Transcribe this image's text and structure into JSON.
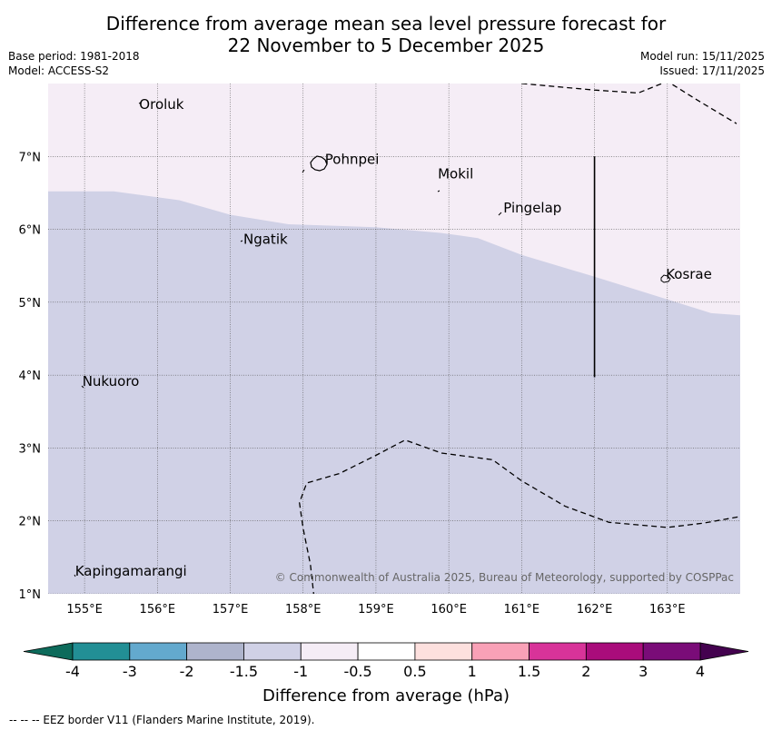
{
  "title": {
    "line1": "Difference from average mean sea level pressure forecast for",
    "line2": "22 November to 5 December 2025"
  },
  "meta": {
    "base_period": "Base period: 1981-2018",
    "model": "Model: ACCESS-S2",
    "model_run": "Model run: 15/11/2025",
    "issued": "Issued: 17/11/2025"
  },
  "map": {
    "lon_range": [
      154.5,
      164
    ],
    "lat_range": [
      1,
      8
    ],
    "lon_ticks": [
      {
        "value": 155,
        "label": "155°E"
      },
      {
        "value": 156,
        "label": "156°E"
      },
      {
        "value": 157,
        "label": "157°E"
      },
      {
        "value": 158,
        "label": "158°E"
      },
      {
        "value": 159,
        "label": "159°E"
      },
      {
        "value": 160,
        "label": "160°E"
      },
      {
        "value": 161,
        "label": "161°E"
      },
      {
        "value": 162,
        "label": "162°E"
      },
      {
        "value": 163,
        "label": "163°E"
      }
    ],
    "lat_ticks": [
      {
        "value": 1,
        "label": "1°N"
      },
      {
        "value": 2,
        "label": "2°N"
      },
      {
        "value": 3,
        "label": "3°N"
      },
      {
        "value": 4,
        "label": "4°N"
      },
      {
        "value": 5,
        "label": "5°N"
      },
      {
        "value": 6,
        "label": "6°N"
      },
      {
        "value": 7,
        "label": "7°N"
      }
    ],
    "places": [
      {
        "name": "Oroluk",
        "lon": 155.75,
        "lat": 7.65
      },
      {
        "name": "Pohnpei",
        "lon": 158.3,
        "lat": 6.9
      },
      {
        "name": "Mokil",
        "lon": 159.85,
        "lat": 6.7
      },
      {
        "name": "Pingelap",
        "lon": 160.75,
        "lat": 6.23
      },
      {
        "name": "Ngatik",
        "lon": 157.18,
        "lat": 5.8
      },
      {
        "name": "Kosrae",
        "lon": 162.98,
        "lat": 5.32
      },
      {
        "name": "Nukuoro",
        "lon": 154.97,
        "lat": 3.85
      },
      {
        "name": "Kapingamarangi",
        "lon": 154.87,
        "lat": 1.25
      }
    ],
    "anomaly_boundary": [
      [
        154.5,
        6.52
      ],
      [
        155.4,
        6.52
      ],
      [
        156.3,
        6.4
      ],
      [
        157.0,
        6.2
      ],
      [
        157.8,
        6.07
      ],
      [
        159.0,
        6.03
      ],
      [
        159.9,
        5.95
      ],
      [
        160.4,
        5.88
      ],
      [
        161.0,
        5.65
      ],
      [
        162.0,
        5.35
      ],
      [
        162.9,
        5.07
      ],
      [
        163.6,
        4.85
      ],
      [
        164.0,
        4.82
      ]
    ],
    "region_colors": {
      "upper": "#f5edf6",
      "lower": "#d0d1e6"
    },
    "eez_lines": [
      [
        [
          161.0,
          8.0
        ],
        [
          162.0,
          7.91
        ],
        [
          162.6,
          7.87
        ],
        [
          163.0,
          8.03
        ],
        [
          163.4,
          7.78
        ],
        [
          163.95,
          7.45
        ]
      ],
      [
        [
          158.15,
          0.95
        ],
        [
          158.1,
          1.4
        ],
        [
          158.0,
          1.9
        ],
        [
          157.95,
          2.25
        ],
        [
          158.05,
          2.52
        ],
        [
          158.5,
          2.65
        ],
        [
          159.0,
          2.9
        ],
        [
          159.4,
          3.11
        ],
        [
          159.9,
          2.93
        ],
        [
          160.6,
          2.84
        ],
        [
          161.0,
          2.55
        ],
        [
          161.6,
          2.2
        ],
        [
          162.2,
          1.98
        ],
        [
          163.0,
          1.91
        ],
        [
          163.5,
          1.97
        ],
        [
          164.0,
          2.06
        ]
      ]
    ],
    "dateline_segment": {
      "lon": 162.0,
      "lat_from": 7.0,
      "lat_to": 3.97
    },
    "copyright": "© Commonwealth of Australia 2025, Bureau of Meteorology, supported by COSPPac"
  },
  "colorbar": {
    "title": "Difference from average (hPa)",
    "ticks": [
      "-4",
      "-3",
      "-2",
      "-1.5",
      "-1",
      "-0.5",
      "0.5",
      "1",
      "1.5",
      "2",
      "3",
      "4"
    ],
    "colors": [
      "#228f95",
      "#63a9ce",
      "#aeb4cc",
      "#d0d1e6",
      "#f5edf6",
      "#ffffff",
      "#fde0de",
      "#f9a1b7",
      "#d83399",
      "#a90c7b",
      "#7a0c78"
    ],
    "under_color": "#0d6b5b",
    "over_color": "#44024f"
  },
  "footer": "--  --  -- EEZ border V11 (Flanders Marine Institute, 2019)."
}
